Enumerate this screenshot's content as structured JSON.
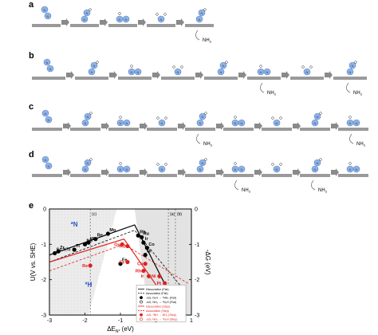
{
  "panels": {
    "a": {
      "label": "a",
      "product": "NH",
      "product_sub": "3"
    },
    "b": {
      "label": "b",
      "product": "NH",
      "product_sub": "3"
    },
    "c": {
      "label": "c",
      "product": "NH",
      "product_sub": "3"
    },
    "d": {
      "label": "d",
      "product": "NH",
      "product_sub": "3"
    },
    "e": {
      "label": "e"
    }
  },
  "atom_label": "N",
  "chart_data": {
    "type": "scatter",
    "xlabel_main": "ΔE",
    "xlabel_sub": "N*",
    "xlabel_unit": " (eV)",
    "ylabel_left": "U(V vs. SHE)",
    "ylabel_right": "-ΔG (eV)",
    "xlim": [
      -3,
      1
    ],
    "ylim_left": [
      -3,
      0
    ],
    "ylim_right": [
      -3,
      0
    ],
    "x_ticks": [
      "-3",
      "-2",
      "-1",
      "0",
      "1"
    ],
    "y_ticks_left": [
      "-3",
      "-2",
      "-1",
      "0"
    ],
    "y_ticks_right": [
      "-3",
      "-2",
      "-1",
      "0"
    ],
    "region_labels": [
      "*N",
      "*H"
    ],
    "region_marks": [
      "(c)",
      "(a)",
      "(b)"
    ],
    "legend": [
      {
        "name": "Dissociative (Flat)",
        "color": "#000000",
        "style": "solid"
      },
      {
        "name": "Associative (Flat)",
        "color": "#000000",
        "style": "dashed"
      },
      {
        "name": "-ΔG, N₂H → *NH₂ (Flat)",
        "color": "#000000",
        "marker": "filled"
      },
      {
        "name": "-ΔG, NH₃ → *N₂H (Flat)",
        "color": "#000000",
        "marker": "open"
      },
      {
        "name": "Dissociative (Step)",
        "color": "#e02020",
        "style": "solid"
      },
      {
        "name": "Associative (Step)",
        "color": "#e02020",
        "style": "dashed"
      },
      {
        "name": "-ΔG, *NH → NH₂ (Step)",
        "color": "#e02020",
        "marker": "filled"
      },
      {
        "name": "-ΔG, NH₃ → *N₂H (Step)",
        "color": "#e02020",
        "marker": "open"
      }
    ],
    "points_flat": [
      {
        "label": "Sc,Y,Ti",
        "x": -2.85,
        "y": -1.25
      },
      {
        "label": "Zr",
        "x": -2.75,
        "y": -1.2
      },
      {
        "label": "Ti",
        "x": -2.3,
        "y": -1.15
      },
      {
        "label": "Nb",
        "x": -2.0,
        "y": -1.0
      },
      {
        "label": "Mo",
        "x": -1.35,
        "y": -0.7
      },
      {
        "label": "Re",
        "x": -1.7,
        "y": -0.85
      },
      {
        "label": "W",
        "x": -1.9,
        "y": -0.95
      },
      {
        "label": "Fe",
        "x": -1.0,
        "y": -1.55
      },
      {
        "label": "Rh",
        "x": -0.5,
        "y": -0.75
      },
      {
        "label": "Ru",
        "x": -0.4,
        "y": -0.8
      },
      {
        "label": "Ir",
        "x": -0.35,
        "y": -0.95
      },
      {
        "label": "Co",
        "x": -0.25,
        "y": -1.1
      },
      {
        "label": "Ni",
        "x": -0.3,
        "y": -1.3
      },
      {
        "label": "Pd",
        "x": 0.35,
        "y": -2.75
      }
    ],
    "points_step": [
      {
        "label": "Re",
        "x": -1.85,
        "y": -1.6
      },
      {
        "label": "Ru",
        "x": -0.8,
        "y": -1.05
      },
      {
        "label": "Os",
        "x": -0.95,
        "y": -1.0
      },
      {
        "label": "Fe",
        "x": -0.8,
        "y": -1.5
      },
      {
        "label": "Rh",
        "x": -0.35,
        "y": -1.75
      },
      {
        "label": "Co",
        "x": -0.3,
        "y": -1.55
      },
      {
        "label": "Ir",
        "x": -0.2,
        "y": -1.9
      },
      {
        "label": "Pt",
        "x": 0.25,
        "y": -2.1
      },
      {
        "label": "Ni",
        "x": 0.1,
        "y": -1.9
      },
      {
        "label": "Pd",
        "x": 0.3,
        "y": -2.5
      },
      {
        "label": "Cu",
        "x": 0.35,
        "y": -2.3
      }
    ]
  }
}
